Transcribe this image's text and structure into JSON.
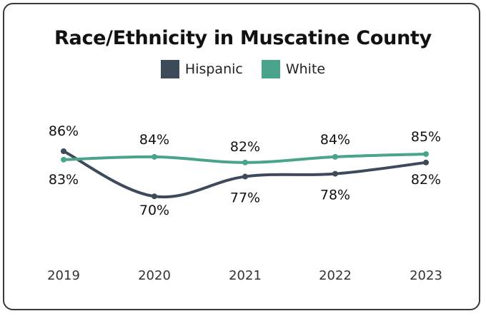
{
  "chart_data": {
    "type": "line",
    "title": "Race/Ethnicity in Muscatine County",
    "categories": [
      "2019",
      "2020",
      "2021",
      "2022",
      "2023"
    ],
    "series": [
      {
        "name": "Hispanic",
        "color": "#3d4a5a",
        "values": [
          86,
          70,
          77,
          78,
          82
        ],
        "labels": [
          "86%",
          "70%",
          "77%",
          "78%",
          "82%"
        ]
      },
      {
        "name": "White",
        "color": "#4aa48c",
        "values": [
          83,
          84,
          82,
          84,
          85
        ],
        "labels": [
          "83%",
          "84%",
          "82%",
          "84%",
          "85%"
        ]
      }
    ],
    "xlabel": "",
    "ylabel": "",
    "ylim": [
      60,
      95
    ],
    "grid": false,
    "legend_position": "top"
  }
}
